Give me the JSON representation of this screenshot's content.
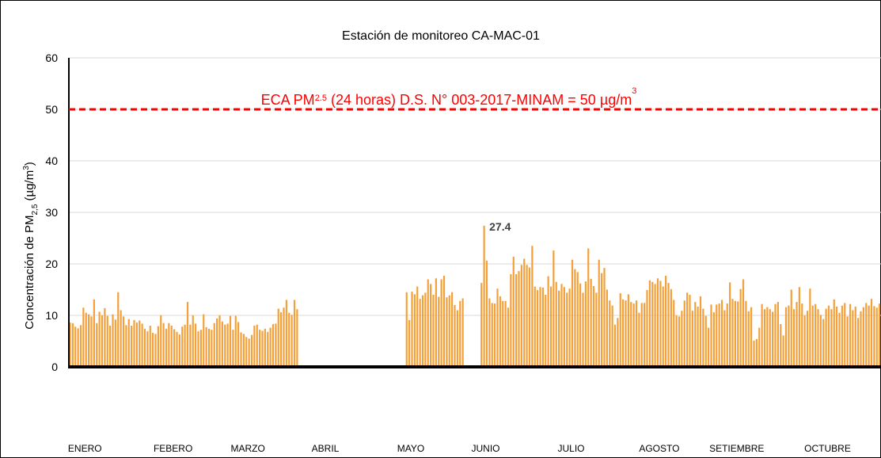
{
  "chart_data": {
    "type": "bar",
    "title": "Estación de monitoreo CA-MAC-01",
    "y_label_parts": [
      "Concentración de PM",
      "2,5",
      " (µg/m",
      "3",
      ")"
    ],
    "reference_line": 50,
    "reference_color": "#ff0000",
    "reference_label_parts": [
      "ECA PM",
      "2.5",
      " (24 horas) D.S. N° 003-2017-MINAM = 50 µg/m",
      "3"
    ],
    "max_label": "27.4",
    "color": "#f4a03a",
    "grid": true,
    "ylim": [
      0,
      60
    ],
    "yticks": [
      0,
      10,
      20,
      30,
      40,
      50,
      60
    ],
    "xlim": [
      0,
      304
    ],
    "xticks": [
      {
        "value": 6,
        "label": "ENERO"
      },
      {
        "value": 39,
        "label": "FEBERO"
      },
      {
        "value": 67,
        "label": "MARZO"
      },
      {
        "value": 96,
        "label": "ABRIL"
      },
      {
        "value": 128,
        "label": "MAYO"
      },
      {
        "value": 156,
        "label": "JUNIO"
      },
      {
        "value": 188,
        "label": "JULIO"
      },
      {
        "value": 221,
        "label": "AGOSTO"
      },
      {
        "value": 250,
        "label": "SETIEMBRE"
      },
      {
        "value": 284,
        "label": "OCTUBRE"
      }
    ],
    "values": [
      8.6,
      8.5,
      7.8,
      7.5,
      8.1,
      11.5,
      10.5,
      10.2,
      9.8,
      13.1,
      8.5,
      10.7,
      10,
      11.4,
      9.9,
      8,
      10.2,
      9.2,
      14.5,
      11,
      9.8,
      8.1,
      9.3,
      8,
      9.1,
      8.6,
      9,
      8.4,
      7.4,
      6.9,
      8,
      6.6,
      6.4,
      7.9,
      10,
      8.5,
      7.4,
      8.5,
      8,
      7.3,
      6.8,
      6.3,
      7.8,
      8.2,
      12.6,
      8.2,
      10,
      8.4,
      6.9,
      7.2,
      10.2,
      7.7,
      7.4,
      7.2,
      8.5,
      9.4,
      10,
      8.8,
      8.2,
      8.4,
      9.9,
      7.2,
      9.9,
      8.7,
      6.7,
      6.4,
      5.8,
      5.5,
      6.2,
      8,
      8.2,
      7.2,
      7,
      7.4,
      6.8,
      7.6,
      8.3,
      8.4,
      11.3,
      10.6,
      11.5,
      13,
      10.5,
      10.1,
      13,
      11.2,
      null,
      null,
      null,
      null,
      null,
      null,
      null,
      null,
      null,
      null,
      null,
      null,
      null,
      null,
      null,
      null,
      null,
      null,
      null,
      null,
      null,
      null,
      null,
      null,
      null,
      null,
      null,
      null,
      null,
      null,
      null,
      null,
      null,
      null,
      null,
      null,
      null,
      null,
      null,
      null,
      14.5,
      9.1,
      14.6,
      14.1,
      15.6,
      13.2,
      13.9,
      14.4,
      17,
      16.1,
      14,
      17.2,
      13.6,
      17,
      17.7,
      13.5,
      13.9,
      14.5,
      12,
      11,
      12.8,
      13.3,
      null,
      null,
      null,
      null,
      null,
      null,
      16.3,
      27.4,
      20.6,
      13.3,
      12.4,
      12.3,
      15.2,
      13.7,
      12.8,
      12.8,
      11.5,
      18,
      21.4,
      18,
      18.6,
      19.8,
      21,
      19.8,
      19.3,
      23.5,
      15.6,
      14.9,
      15.5,
      15.4,
      14,
      17.6,
      15.6,
      22.6,
      16.5,
      14.8,
      16.1,
      15.5,
      14.4,
      15.2,
      20.8,
      19,
      18.4,
      16.2,
      14.4,
      16.6,
      23,
      17.1,
      15.7,
      14.4,
      20.8,
      18.2,
      19.2,
      15,
      12.9,
      11.9,
      8.2,
      9.5,
      14.3,
      13.1,
      12.9,
      14.1,
      12.6,
      12.3,
      12.9,
      10.5,
      12.4,
      12.4,
      14.9,
      16.8,
      16.5,
      16.1,
      17.2,
      16.7,
      15.6,
      17.7,
      16.3,
      15.1,
      13,
      10,
      9.8,
      10.9,
      12.9,
      14.4,
      14,
      10.9,
      12.6,
      11.7,
      13.7,
      11.3,
      9.9,
      7.6,
      12.1,
      10.6,
      12.1,
      12.3,
      13,
      11,
      12.3,
      16.4,
      13.2,
      12.8,
      12.7,
      15.1,
      17,
      12.8,
      10.8,
      11.6,
      5.1,
      5.4,
      7.6,
      12.2,
      11.2,
      11.6,
      11.2,
      10.7,
      12.2,
      12.6,
      8.3,
      6.1,
      11.6,
      11.9,
      15,
      11.2,
      12.6,
      15.5,
      12.3,
      10,
      10.9,
      15.2,
      11.9,
      12.2,
      11.2,
      10.1,
      9.3,
      11.3,
      11.9,
      11.2,
      13.1,
      11.7,
      10.5,
      11.9,
      12.4,
      9.8,
      12.2,
      11,
      11.7,
      9.5,
      10.8,
      11.6,
      12.4,
      11.9,
      13.2,
      11.8,
      11.5,
      12.3
    ]
  }
}
